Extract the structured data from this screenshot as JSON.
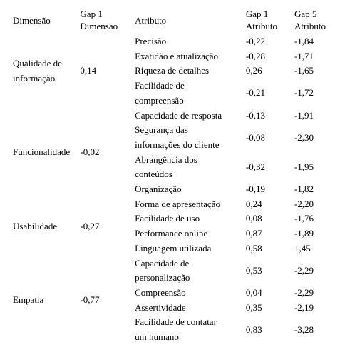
{
  "table": {
    "header": [
      "Dimensão",
      "Gap 1 Dimensao",
      "Atributo",
      "Gap 1 Atributo",
      "Gap 5 Atributo"
    ],
    "groups": [
      {
        "dimension": "Qualidade de informação",
        "gap1": "0,14",
        "rows": [
          [
            "Precisão",
            "-0,22",
            "-1,84"
          ],
          [
            "Exatidão e atualização",
            "-0,28",
            "-1,71"
          ],
          [
            "Riqueza de detalhes",
            "0,26",
            "-1,65"
          ],
          [
            "Facilidade de compreensão",
            "-0,21",
            "-1,72"
          ]
        ]
      },
      {
        "dimension": "Funcionalidade",
        "gap1": "-0,02",
        "rows": [
          [
            "Capacidade de resposta",
            "-0,13",
            "-1,91"
          ],
          [
            "Segurança das informações do cliente",
            "-0,08",
            "-2,30"
          ],
          [
            "Abrangência dos conteúdos",
            "-0,32",
            "-1,95"
          ],
          [
            "Organização",
            "-0,19",
            "-1,82"
          ]
        ]
      },
      {
        "dimension": "Usabilidade",
        "gap1": "-0,27",
        "rows": [
          [
            "Forma de apresentação",
            "0,24",
            "-2,20"
          ],
          [
            "Facilidade de uso",
            "0,08",
            "-1,76"
          ],
          [
            "Performance online",
            "0,87",
            "-1,89"
          ],
          [
            "Linguagem utilizada",
            "0,58",
            "1,45"
          ]
        ]
      },
      {
        "dimension": "Empatia",
        "gap1": "-0,77",
        "rows": [
          [
            "Capacidade de personalização",
            "0,53",
            "-2,29"
          ],
          [
            "Compreensão",
            "0,04",
            "-2,29"
          ],
          [
            "Assertividade",
            "0,35",
            "-2,19"
          ],
          [
            "Facilidade de contatar um humano",
            "0,83",
            "-3,28"
          ]
        ]
      }
    ]
  }
}
